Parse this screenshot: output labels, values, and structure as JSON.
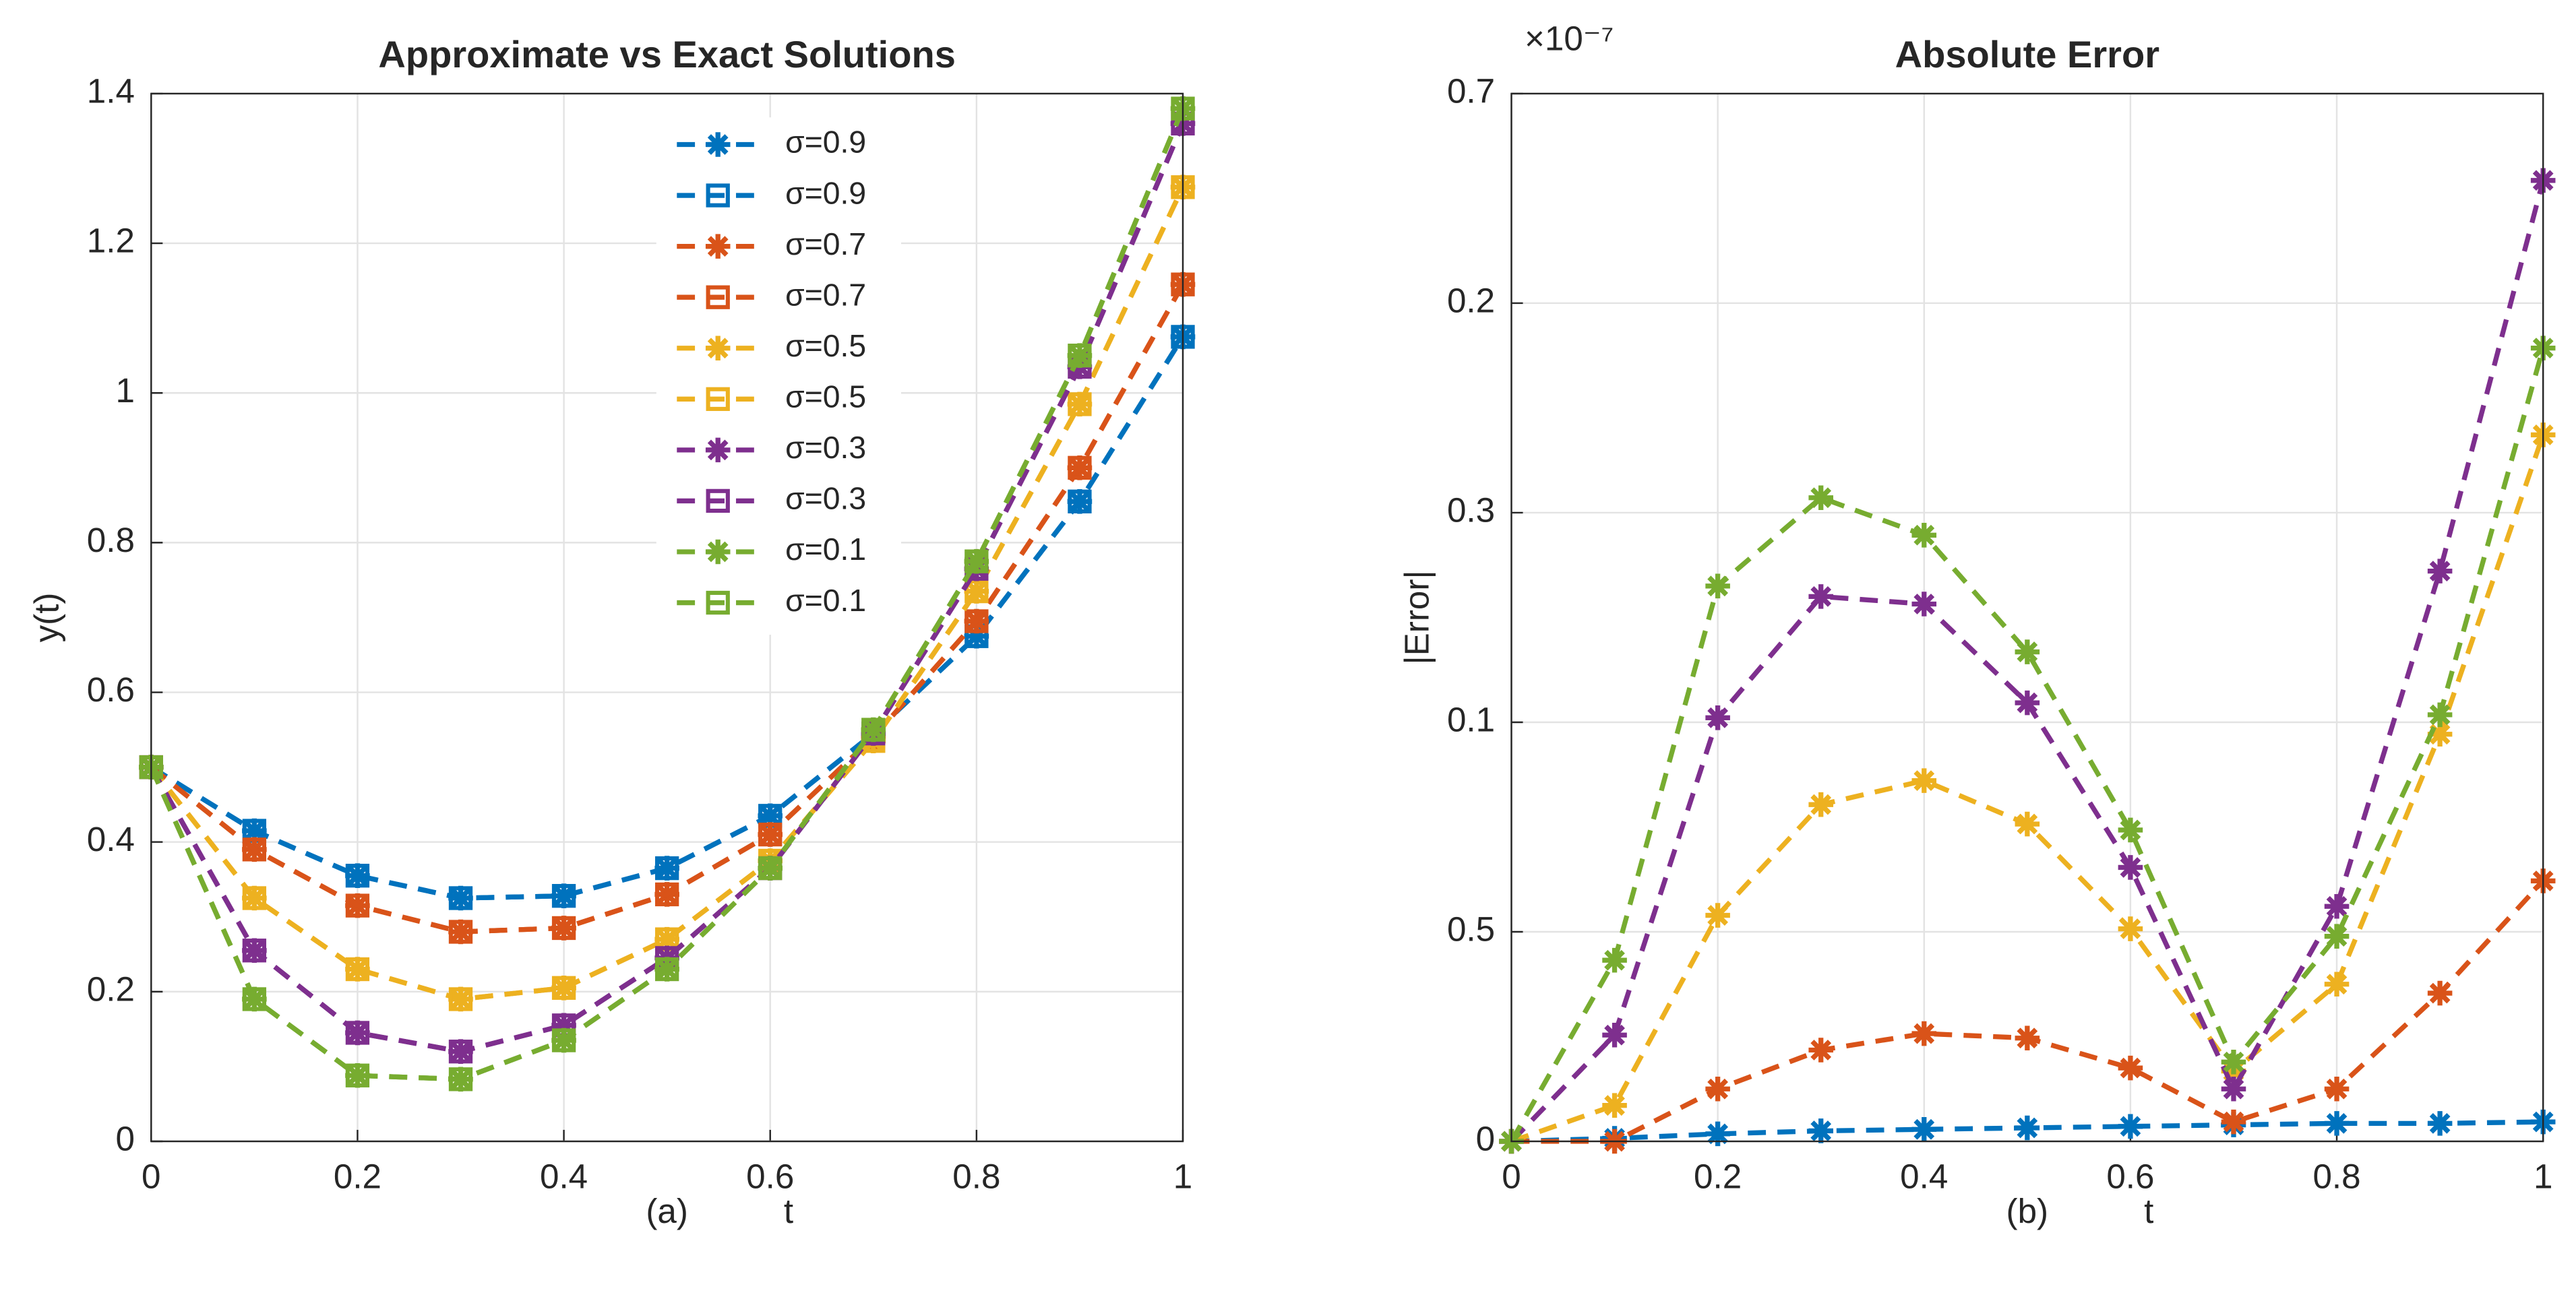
{
  "chart_data": [
    {
      "type": "line",
      "title": "Approximate vs Exact Solutions",
      "xlabel": "t",
      "ylabel": "y(t)",
      "annotation": "(a)",
      "x": [
        0,
        0.1,
        0.2,
        0.3,
        0.4,
        0.5,
        0.6,
        0.7,
        0.8,
        0.9,
        1
      ],
      "xlim": [
        0,
        1
      ],
      "xticks": [
        0,
        0.2,
        0.4,
        0.6,
        0.8,
        1
      ],
      "ylim": [
        0,
        1.4
      ],
      "yticks": [
        0,
        0.2,
        0.4,
        0.6,
        0.8,
        1,
        1.2,
        1.4
      ],
      "grid": true,
      "legend": "upper center",
      "series": [
        {
          "name": "σ=0.9",
          "color": "#0072BD",
          "marker": "asterisk",
          "values": [
            0.5,
            0.415,
            0.355,
            0.325,
            0.328,
            0.365,
            0.435,
            0.545,
            0.675,
            0.855,
            1.075
          ]
        },
        {
          "name": "σ=0.9",
          "color": "#0072BD",
          "marker": "square",
          "values": [
            0.5,
            0.415,
            0.355,
            0.325,
            0.328,
            0.365,
            0.435,
            0.545,
            0.675,
            0.855,
            1.075
          ]
        },
        {
          "name": "σ=0.7",
          "color": "#D95319",
          "marker": "asterisk",
          "values": [
            0.5,
            0.39,
            0.315,
            0.28,
            0.285,
            0.33,
            0.41,
            0.54,
            0.695,
            0.9,
            1.145
          ]
        },
        {
          "name": "σ=0.7",
          "color": "#D95319",
          "marker": "square",
          "values": [
            0.5,
            0.39,
            0.315,
            0.28,
            0.285,
            0.33,
            0.41,
            0.54,
            0.695,
            0.9,
            1.145
          ]
        },
        {
          "name": "σ=0.5",
          "color": "#EDB120",
          "marker": "asterisk",
          "values": [
            0.5,
            0.325,
            0.23,
            0.19,
            0.205,
            0.27,
            0.375,
            0.535,
            0.735,
            0.985,
            1.275
          ]
        },
        {
          "name": "σ=0.5",
          "color": "#EDB120",
          "marker": "square",
          "values": [
            0.5,
            0.325,
            0.23,
            0.19,
            0.205,
            0.27,
            0.375,
            0.535,
            0.735,
            0.985,
            1.275
          ]
        },
        {
          "name": "σ=0.3",
          "color": "#7E2F8E",
          "marker": "asterisk",
          "values": [
            0.5,
            0.255,
            0.145,
            0.12,
            0.155,
            0.245,
            0.365,
            0.545,
            0.765,
            1.035,
            1.36
          ]
        },
        {
          "name": "σ=0.3",
          "color": "#7E2F8E",
          "marker": "square",
          "values": [
            0.5,
            0.255,
            0.145,
            0.12,
            0.155,
            0.245,
            0.365,
            0.545,
            0.765,
            1.035,
            1.36
          ]
        },
        {
          "name": "σ=0.1",
          "color": "#77AC30",
          "marker": "asterisk",
          "values": [
            0.5,
            0.19,
            0.088,
            0.083,
            0.135,
            0.23,
            0.365,
            0.55,
            0.775,
            1.05,
            1.38
          ]
        },
        {
          "name": "σ=0.1",
          "color": "#77AC30",
          "marker": "square",
          "values": [
            0.5,
            0.19,
            0.088,
            0.083,
            0.135,
            0.23,
            0.365,
            0.55,
            0.775,
            1.05,
            1.38
          ]
        }
      ]
    },
    {
      "type": "line",
      "title": "Absolute Error",
      "xlabel": "t",
      "ylabel": "|Error|",
      "annotation": "(b)",
      "y_multiplier": "×10⁻⁷",
      "x": [
        0,
        0.1,
        0.2,
        0.3,
        0.4,
        0.5,
        0.6,
        0.7,
        0.8,
        0.9,
        1
      ],
      "xlim": [
        0,
        1
      ],
      "xticks": [
        0,
        0.2,
        0.4,
        0.6,
        0.8,
        1
      ],
      "ylim": [
        0,
        0.7
      ],
      "yticks": [
        0,
        {
          "value": 0.14,
          "label": "0.5"
        },
        {
          "value": 0.28,
          "label": "0.1"
        },
        {
          "value": 0.42,
          "label": "0.3"
        },
        {
          "value": 0.56,
          "label": "0.2"
        },
        0.7
      ],
      "grid": true,
      "series": [
        {
          "color": "#0072BD",
          "marker": "asterisk",
          "values": [
            0,
            0.002,
            0.005,
            0.007,
            0.008,
            0.009,
            0.01,
            0.011,
            0.012,
            0.012,
            0.013
          ]
        },
        {
          "color": "#D95319",
          "marker": "asterisk",
          "values": [
            0,
            0,
            0.035,
            0.061,
            0.072,
            0.069,
            0.049,
            0.013,
            0.035,
            0.099,
            0.174
          ]
        },
        {
          "color": "#EDB120",
          "marker": "asterisk",
          "values": [
            0,
            0.024,
            0.151,
            0.225,
            0.241,
            0.212,
            0.142,
            0.047,
            0.105,
            0.272,
            0.472
          ]
        },
        {
          "color": "#7E2F8E",
          "marker": "asterisk",
          "values": [
            0,
            0.071,
            0.283,
            0.364,
            0.359,
            0.293,
            0.183,
            0.035,
            0.157,
            0.381,
            0.642
          ]
        },
        {
          "color": "#77AC30",
          "marker": "asterisk",
          "values": [
            0,
            0.121,
            0.371,
            0.43,
            0.405,
            0.327,
            0.208,
            0.053,
            0.137,
            0.285,
            0.53
          ]
        }
      ]
    }
  ]
}
